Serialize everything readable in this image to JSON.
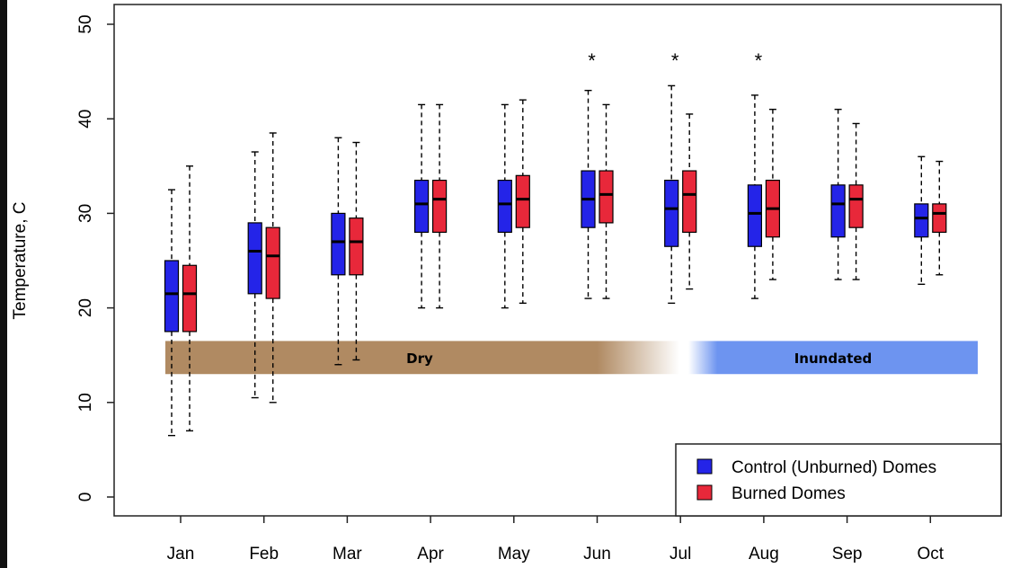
{
  "chart_data": {
    "type": "box",
    "ylabel": "Temperature, C",
    "ylim": [
      0,
      52
    ],
    "yticks": [
      "0",
      "10",
      "20",
      "30",
      "40",
      "50"
    ],
    "categories": [
      "Jan",
      "Feb",
      "Mar",
      "Apr",
      "May",
      "Jun",
      "Jul",
      "Aug",
      "Sep",
      "Oct"
    ],
    "colors": {
      "control": "#2424e8",
      "burned": "#e8283a"
    },
    "legend": {
      "position": "bottom-right",
      "entries": [
        "Control (Unburned) Domes",
        "Burned Domes"
      ]
    },
    "series": [
      {
        "name": "Control (Unburned) Domes",
        "boxes": [
          {
            "min": 6.5,
            "q1": 17.5,
            "median": 21.5,
            "q3": 25.0,
            "max": 32.5
          },
          {
            "min": 10.5,
            "q1": 21.5,
            "median": 26.0,
            "q3": 29.0,
            "max": 36.5
          },
          {
            "min": 14.0,
            "q1": 23.5,
            "median": 27.0,
            "q3": 30.0,
            "max": 38.0
          },
          {
            "min": 20.0,
            "q1": 28.0,
            "median": 31.0,
            "q3": 33.5,
            "max": 41.5
          },
          {
            "min": 20.0,
            "q1": 28.0,
            "median": 31.0,
            "q3": 33.5,
            "max": 41.5
          },
          {
            "min": 21.0,
            "q1": 28.5,
            "median": 31.5,
            "q3": 34.5,
            "max": 43.0
          },
          {
            "min": 20.5,
            "q1": 26.5,
            "median": 30.5,
            "q3": 33.5,
            "max": 43.5
          },
          {
            "min": 21.0,
            "q1": 26.5,
            "median": 30.0,
            "q3": 33.0,
            "max": 42.5
          },
          {
            "min": 23.0,
            "q1": 27.5,
            "median": 31.0,
            "q3": 33.0,
            "max": 41.0
          },
          {
            "min": 22.5,
            "q1": 27.5,
            "median": 29.5,
            "q3": 31.0,
            "max": 36.0
          }
        ]
      },
      {
        "name": "Burned Domes",
        "boxes": [
          {
            "min": 7.0,
            "q1": 17.5,
            "median": 21.5,
            "q3": 24.5,
            "max": 35.0
          },
          {
            "min": 10.0,
            "q1": 21.0,
            "median": 25.5,
            "q3": 28.5,
            "max": 38.5
          },
          {
            "min": 14.5,
            "q1": 23.5,
            "median": 27.0,
            "q3": 29.5,
            "max": 37.5
          },
          {
            "min": 20.0,
            "q1": 28.0,
            "median": 31.5,
            "q3": 33.5,
            "max": 41.5
          },
          {
            "min": 20.5,
            "q1": 28.5,
            "median": 31.5,
            "q3": 34.0,
            "max": 42.0
          },
          {
            "min": 21.0,
            "q1": 29.0,
            "median": 32.0,
            "q3": 34.5,
            "max": 41.5
          },
          {
            "min": 22.0,
            "q1": 28.0,
            "median": 32.0,
            "q3": 34.5,
            "max": 40.5
          },
          {
            "min": 23.0,
            "q1": 27.5,
            "median": 30.5,
            "q3": 33.5,
            "max": 41.0
          },
          {
            "min": 23.0,
            "q1": 28.5,
            "median": 31.5,
            "q3": 33.0,
            "max": 39.5
          },
          {
            "min": 23.5,
            "q1": 28.0,
            "median": 30.0,
            "q3": 31.0,
            "max": 35.5
          }
        ]
      }
    ],
    "significance": {
      "symbol": "*",
      "months": [
        "Jun",
        "Jul",
        "Aug"
      ]
    },
    "annotations": [
      {
        "label": "Dry",
        "y_range": [
          13,
          16.5
        ],
        "color": "#b08a62"
      },
      {
        "label": "Inundated",
        "y_range": [
          13,
          16.5
        ],
        "color": "#6d94f0"
      }
    ]
  }
}
